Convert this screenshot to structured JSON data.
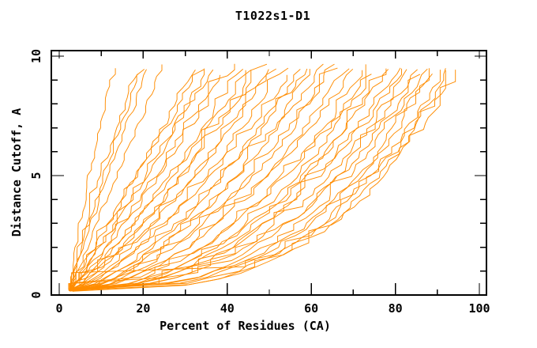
{
  "page": {
    "background": "#ffffff"
  },
  "chart_data": {
    "type": "line",
    "title": "T1022s1-D1",
    "xlabel": "Percent of Residues (CA)",
    "ylabel": "Distance Cutoff, A",
    "xlim": [
      0,
      100
    ],
    "ylim": [
      0,
      10
    ],
    "grid": false,
    "legend": null,
    "line_color": "#ff8c00",
    "axis_color": "#000000",
    "text_color": "#000000",
    "x_major_ticks": [
      0,
      20,
      40,
      60,
      80,
      100
    ],
    "x_tick_labels": [
      "0",
      "20",
      "40",
      "60",
      "80",
      "100"
    ],
    "x_minor_tick_step": 10,
    "y_major_ticks": [
      0,
      5,
      10
    ],
    "y_tick_labels": [
      "0",
      "5",
      "10"
    ],
    "y_minor_tick_step": 1,
    "curve_start": {
      "percent": 2.5,
      "cutoff": 0.2
    },
    "curve_end_cutoff": 9.5,
    "curves": [
      {
        "end_percent": 13.5,
        "shape_exponent": 1.3
      },
      {
        "end_percent": 19.0,
        "shape_exponent": 1.22
      },
      {
        "end_percent": 20.0,
        "shape_exponent": 1.15
      },
      {
        "end_percent": 21.5,
        "shape_exponent": 1.1
      },
      {
        "end_percent": 25.0,
        "shape_exponent": 1.05
      },
      {
        "end_percent": 33.0,
        "shape_exponent": 0.98
      },
      {
        "end_percent": 34.0,
        "shape_exponent": 1.02
      },
      {
        "end_percent": 36.0,
        "shape_exponent": 0.92
      },
      {
        "end_percent": 37.0,
        "shape_exponent": 0.96
      },
      {
        "end_percent": 39.0,
        "shape_exponent": 0.88
      },
      {
        "end_percent": 42.0,
        "shape_exponent": 0.9
      },
      {
        "end_percent": 44.0,
        "shape_exponent": 0.82
      },
      {
        "end_percent": 46.0,
        "shape_exponent": 0.86
      },
      {
        "end_percent": 47.5,
        "shape_exponent": 0.78
      },
      {
        "end_percent": 49.0,
        "shape_exponent": 0.82
      },
      {
        "end_percent": 50.0,
        "shape_exponent": 0.72
      },
      {
        "end_percent": 52.0,
        "shape_exponent": 0.76
      },
      {
        "end_percent": 54.0,
        "shape_exponent": 0.68
      },
      {
        "end_percent": 56.0,
        "shape_exponent": 0.72
      },
      {
        "end_percent": 58.0,
        "shape_exponent": 0.62
      },
      {
        "end_percent": 59.5,
        "shape_exponent": 0.66
      },
      {
        "end_percent": 61.0,
        "shape_exponent": 0.58
      },
      {
        "end_percent": 63.0,
        "shape_exponent": 0.62
      },
      {
        "end_percent": 65.0,
        "shape_exponent": 0.56
      },
      {
        "end_percent": 67.0,
        "shape_exponent": 0.58
      },
      {
        "end_percent": 69.0,
        "shape_exponent": 0.52
      },
      {
        "end_percent": 71.0,
        "shape_exponent": 0.54
      },
      {
        "end_percent": 73.0,
        "shape_exponent": 0.49
      },
      {
        "end_percent": 74.5,
        "shape_exponent": 0.51
      },
      {
        "end_percent": 76.0,
        "shape_exponent": 0.46
      },
      {
        "end_percent": 78.0,
        "shape_exponent": 0.44
      },
      {
        "end_percent": 79.0,
        "shape_exponent": 0.47
      },
      {
        "end_percent": 81.0,
        "shape_exponent": 0.42
      },
      {
        "end_percent": 82.0,
        "shape_exponent": 0.44
      },
      {
        "end_percent": 83.5,
        "shape_exponent": 0.4
      },
      {
        "end_percent": 85.0,
        "shape_exponent": 0.38
      },
      {
        "end_percent": 86.0,
        "shape_exponent": 0.4
      },
      {
        "end_percent": 87.5,
        "shape_exponent": 0.36
      },
      {
        "end_percent": 89.0,
        "shape_exponent": 0.34
      },
      {
        "end_percent": 90.0,
        "shape_exponent": 0.36
      },
      {
        "end_percent": 91.5,
        "shape_exponent": 0.33
      },
      {
        "end_percent": 93.0,
        "shape_exponent": 0.33
      },
      {
        "end_percent": 94.0,
        "shape_exponent": 0.32
      },
      {
        "end_percent": 95.5,
        "shape_exponent": 0.33
      }
    ]
  }
}
